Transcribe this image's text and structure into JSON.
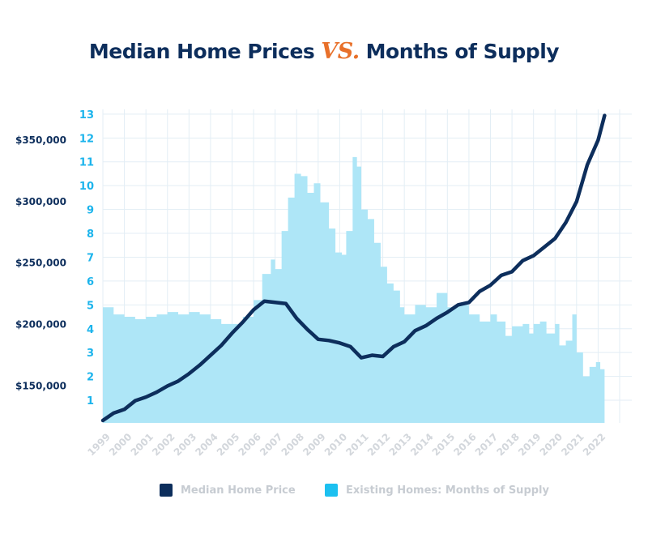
{
  "title": {
    "part1": "Median Home Prices",
    "vs": "VS.",
    "part2": "Months of Supply"
  },
  "legend": {
    "price": "Median Home Price",
    "supply": "Existing Homes: Months of Supply"
  },
  "colors": {
    "price": "#0d2e5c",
    "supply_fill": "#aee6f7",
    "supply_swatch": "#1cc0f0",
    "title_dark": "#0d2e5c",
    "vs": "#e8702a",
    "grid": "#e3eef5",
    "left_axis": "#0d2e5c",
    "right_axis": "#1cb4ec",
    "year_labels": "#d3d7dc"
  },
  "chart_data": {
    "type": "line+area",
    "x_labels": [
      "1999",
      "2000",
      "2001",
      "2002",
      "2003",
      "2004",
      "2005",
      "2006",
      "2007",
      "2008",
      "2009",
      "2010",
      "2011",
      "2012",
      "2013",
      "2014",
      "2015",
      "2016",
      "2017",
      "2018",
      "2019",
      "2020",
      "2021",
      "2022"
    ],
    "left_axis": {
      "label": "",
      "ticks": [
        "$350,000",
        "$300,000",
        "$250,000",
        "$200,000",
        "$150,000"
      ],
      "ylim": [
        120000,
        375000
      ]
    },
    "right_axis": {
      "label": "",
      "ticks": [
        "1",
        "2",
        "3",
        "4",
        "5",
        "6",
        "7",
        "8",
        "9",
        "10",
        "11",
        "12",
        "13"
      ],
      "ylim": [
        0.05,
        13.2
      ]
    },
    "series": [
      {
        "name": "Median Home Price",
        "type": "line",
        "axis": "left",
        "points": [
          [
            1999.0,
            122000
          ],
          [
            1999.5,
            128000
          ],
          [
            2000.0,
            131000
          ],
          [
            2000.5,
            138000
          ],
          [
            2001.0,
            141000
          ],
          [
            2001.5,
            145000
          ],
          [
            2002.0,
            150000
          ],
          [
            2002.5,
            154000
          ],
          [
            2003.0,
            160000
          ],
          [
            2003.5,
            167000
          ],
          [
            2004.0,
            175000
          ],
          [
            2004.5,
            183000
          ],
          [
            2005.0,
            193000
          ],
          [
            2005.5,
            202000
          ],
          [
            2006.0,
            212000
          ],
          [
            2006.5,
            219000
          ],
          [
            2007.0,
            218000
          ],
          [
            2007.5,
            217000
          ],
          [
            2008.0,
            205000
          ],
          [
            2008.5,
            196000
          ],
          [
            2009.0,
            188000
          ],
          [
            2009.5,
            187000
          ],
          [
            2010.0,
            185000
          ],
          [
            2010.5,
            182000
          ],
          [
            2011.0,
            173000
          ],
          [
            2011.5,
            175000
          ],
          [
            2012.0,
            174000
          ],
          [
            2012.5,
            182000
          ],
          [
            2013.0,
            186000
          ],
          [
            2013.5,
            195000
          ],
          [
            2014.0,
            199000
          ],
          [
            2014.5,
            205000
          ],
          [
            2015.0,
            210000
          ],
          [
            2015.5,
            216000
          ],
          [
            2016.0,
            218000
          ],
          [
            2016.5,
            227000
          ],
          [
            2017.0,
            232000
          ],
          [
            2017.5,
            240000
          ],
          [
            2018.0,
            243000
          ],
          [
            2018.5,
            252000
          ],
          [
            2019.0,
            256000
          ],
          [
            2019.5,
            263000
          ],
          [
            2020.0,
            270000
          ],
          [
            2020.5,
            283000
          ],
          [
            2021.0,
            300000
          ],
          [
            2021.5,
            330000
          ],
          [
            2022.0,
            350000
          ],
          [
            2022.3,
            370000
          ]
        ]
      },
      {
        "name": "Existing Homes: Months of Supply",
        "type": "area",
        "axis": "right",
        "points": [
          [
            1999.0,
            4.9
          ],
          [
            1999.5,
            4.6
          ],
          [
            2000.0,
            4.5
          ],
          [
            2000.5,
            4.4
          ],
          [
            2001.0,
            4.5
          ],
          [
            2001.5,
            4.6
          ],
          [
            2002.0,
            4.7
          ],
          [
            2002.5,
            4.6
          ],
          [
            2003.0,
            4.7
          ],
          [
            2003.5,
            4.6
          ],
          [
            2004.0,
            4.4
          ],
          [
            2004.5,
            4.2
          ],
          [
            2005.0,
            4.2
          ],
          [
            2005.5,
            4.5
          ],
          [
            2006.0,
            5.2
          ],
          [
            2006.4,
            6.3
          ],
          [
            2006.8,
            6.9
          ],
          [
            2007.0,
            6.5
          ],
          [
            2007.3,
            8.1
          ],
          [
            2007.6,
            9.5
          ],
          [
            2007.9,
            10.5
          ],
          [
            2008.2,
            10.4
          ],
          [
            2008.5,
            9.7
          ],
          [
            2008.8,
            10.1
          ],
          [
            2009.1,
            9.3
          ],
          [
            2009.5,
            8.2
          ],
          [
            2009.8,
            7.2
          ],
          [
            2010.1,
            7.1
          ],
          [
            2010.3,
            8.1
          ],
          [
            2010.6,
            11.2
          ],
          [
            2010.8,
            10.8
          ],
          [
            2011.0,
            9.0
          ],
          [
            2011.3,
            8.6
          ],
          [
            2011.6,
            7.6
          ],
          [
            2011.9,
            6.6
          ],
          [
            2012.2,
            5.9
          ],
          [
            2012.5,
            5.6
          ],
          [
            2012.8,
            4.9
          ],
          [
            2013.0,
            4.6
          ],
          [
            2013.5,
            5.0
          ],
          [
            2014.0,
            4.9
          ],
          [
            2014.5,
            5.5
          ],
          [
            2015.0,
            4.9
          ],
          [
            2015.5,
            5.0
          ],
          [
            2016.0,
            4.6
          ],
          [
            2016.5,
            4.3
          ],
          [
            2017.0,
            4.6
          ],
          [
            2017.3,
            4.3
          ],
          [
            2017.7,
            3.7
          ],
          [
            2018.0,
            4.1
          ],
          [
            2018.5,
            4.2
          ],
          [
            2018.8,
            3.8
          ],
          [
            2019.0,
            4.2
          ],
          [
            2019.3,
            4.3
          ],
          [
            2019.6,
            3.8
          ],
          [
            2020.0,
            4.2
          ],
          [
            2020.2,
            3.3
          ],
          [
            2020.5,
            3.5
          ],
          [
            2020.8,
            4.6
          ],
          [
            2021.0,
            3.0
          ],
          [
            2021.3,
            2.0
          ],
          [
            2021.6,
            2.4
          ],
          [
            2021.9,
            2.6
          ],
          [
            2022.1,
            2.3
          ],
          [
            2022.3,
            2.0
          ]
        ]
      }
    ]
  }
}
